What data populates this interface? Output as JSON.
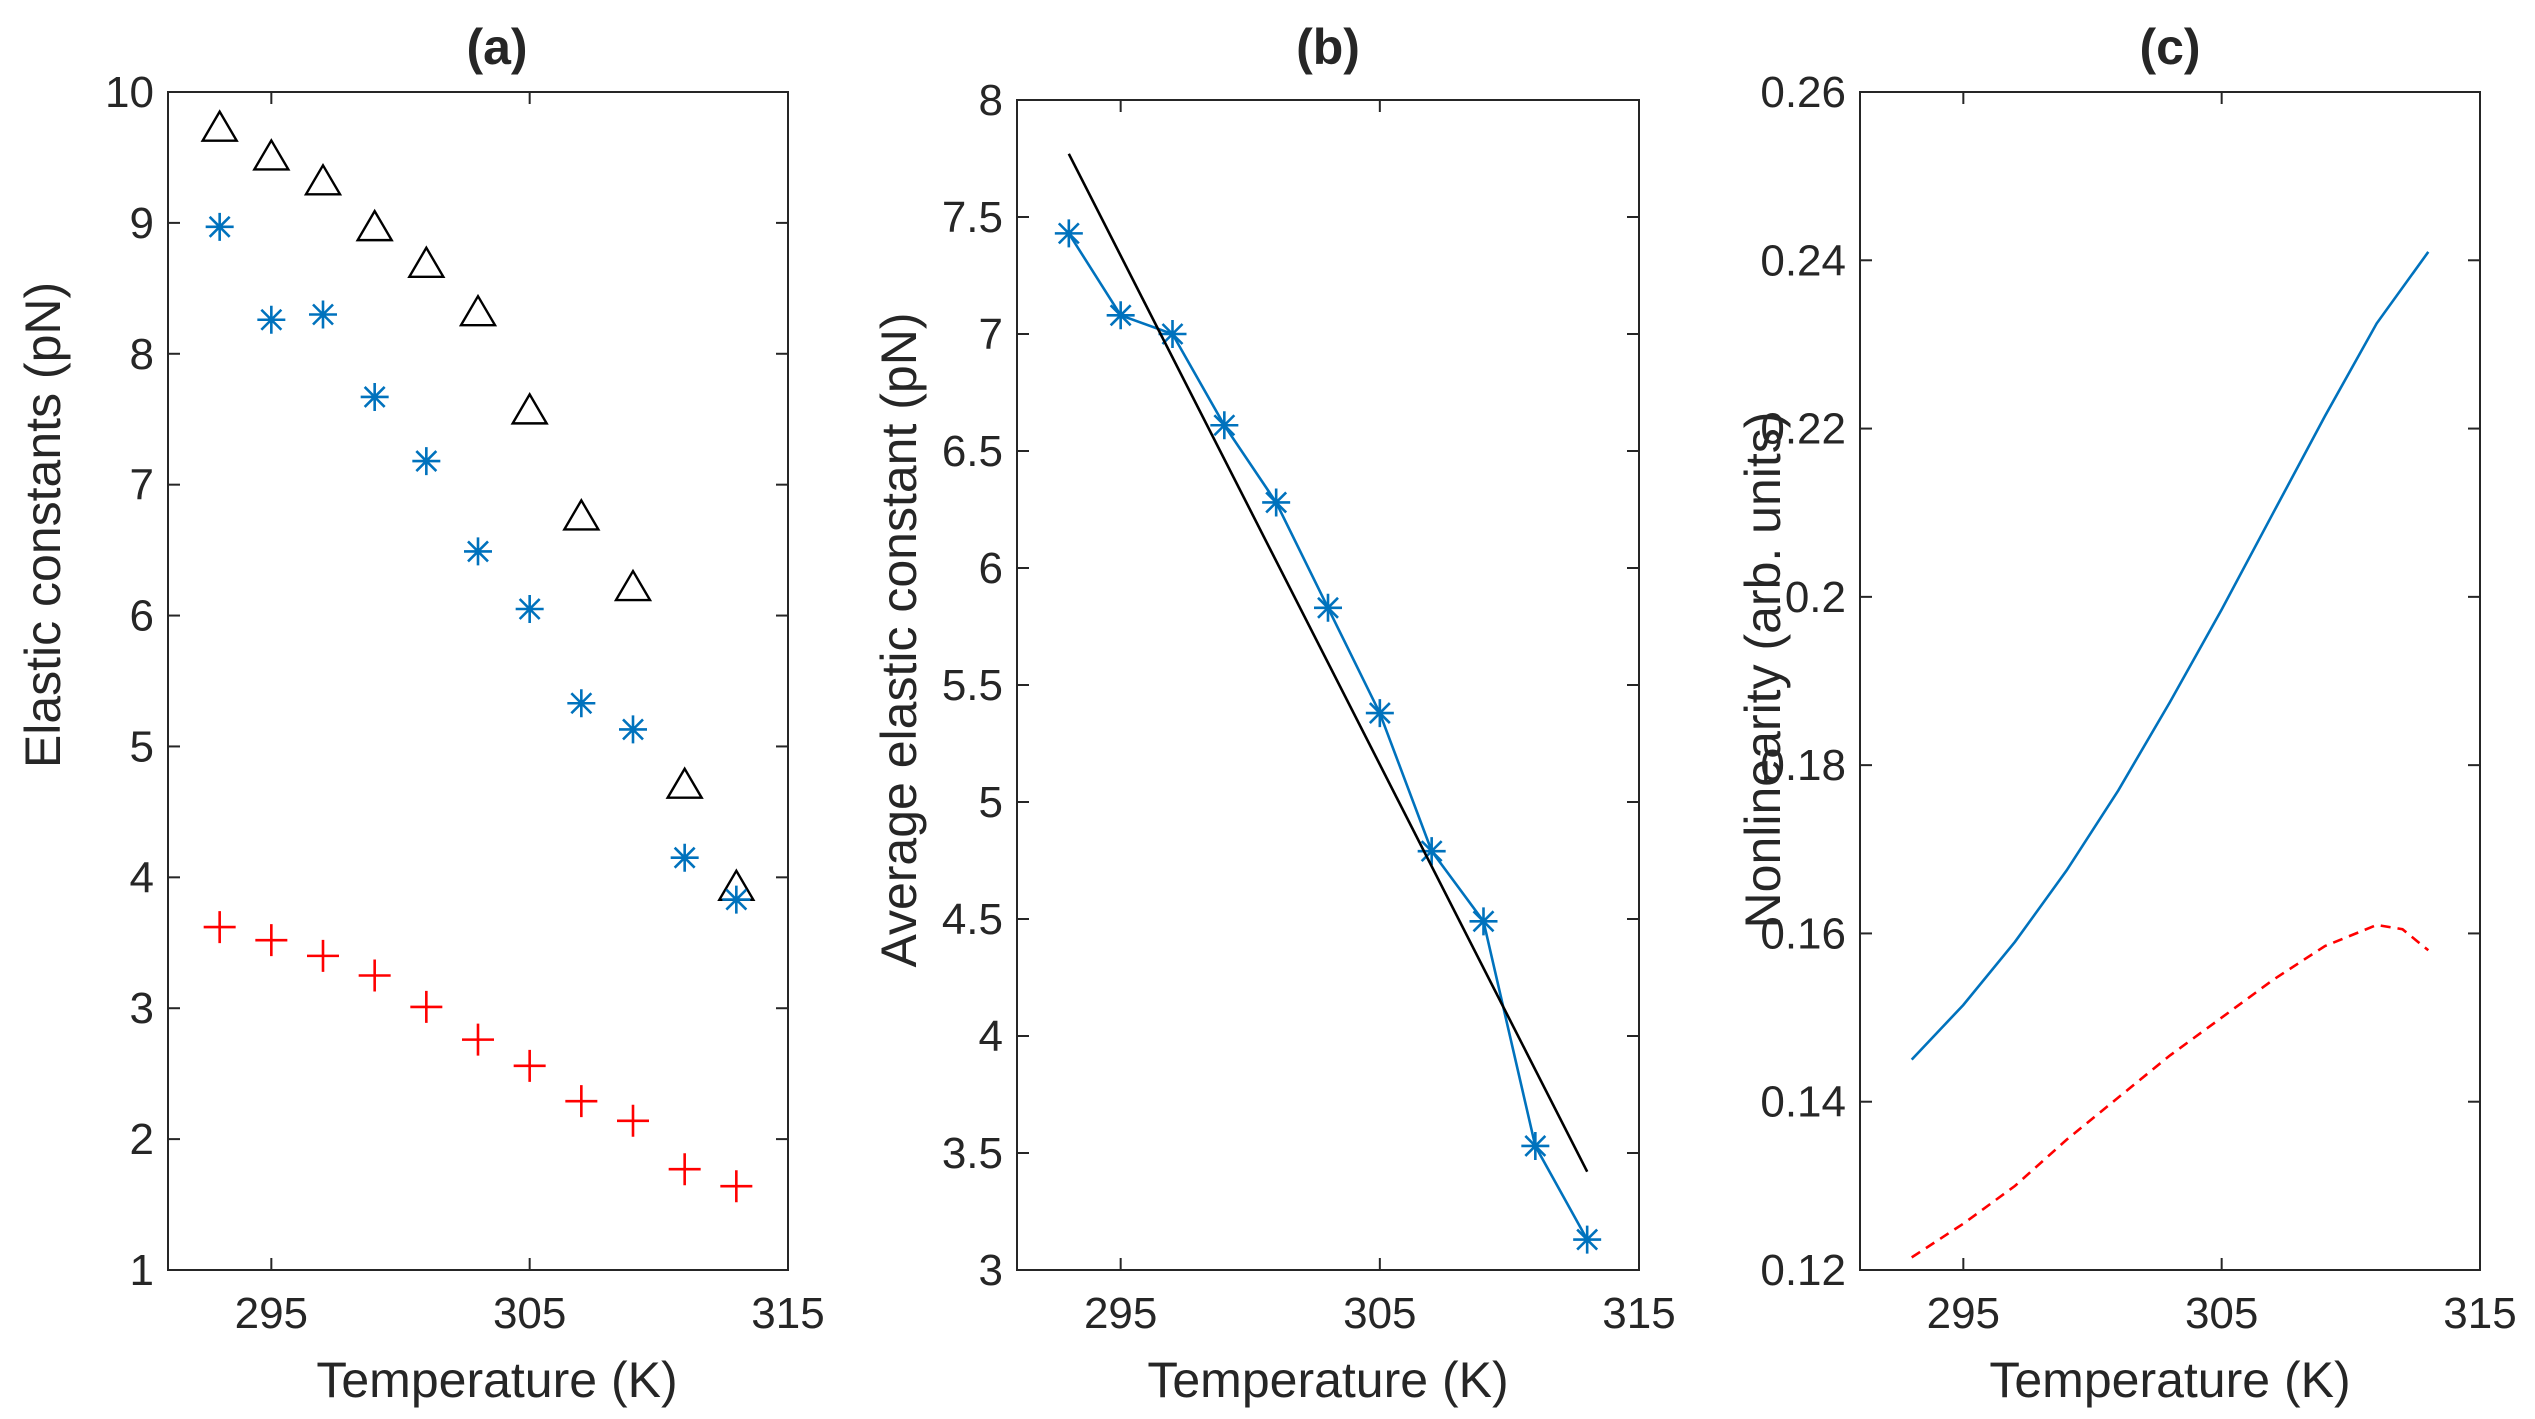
{
  "chart_data": [
    {
      "type": "scatter",
      "title": "(a)",
      "xlabel": "Temperature (K)",
      "ylabel": "Elastic constants (pN)",
      "xlim": [
        291,
        315
      ],
      "ylim": [
        1,
        10
      ],
      "xticks": [
        295,
        305,
        315
      ],
      "xtick_labels": [
        "295",
        "305",
        "315"
      ],
      "yticks": [
        1,
        2,
        3,
        4,
        5,
        6,
        7,
        8,
        9,
        10
      ],
      "ytick_labels": [
        "1",
        "2",
        "3",
        "4",
        "5",
        "6",
        "7",
        "8",
        "9",
        "10"
      ],
      "x": [
        293,
        295,
        297,
        299,
        301,
        303,
        305,
        307,
        309,
        311,
        313
      ],
      "series": [
        {
          "name": "triangles",
          "marker": "triangle",
          "line": "none",
          "color": "#000000",
          "values": [
            9.72,
            9.5,
            9.31,
            8.96,
            8.68,
            8.31,
            7.56,
            6.75,
            6.21,
            4.7,
            3.92
          ]
        },
        {
          "name": "stars",
          "marker": "star",
          "line": "none",
          "color": "#0072BD",
          "values": [
            8.97,
            8.26,
            8.3,
            7.67,
            7.18,
            6.49,
            6.05,
            5.33,
            5.13,
            4.15,
            3.83
          ]
        },
        {
          "name": "plus",
          "marker": "plus",
          "line": "none",
          "color": "#FF0000",
          "values": [
            3.62,
            3.52,
            3.4,
            3.25,
            3.01,
            2.76,
            2.56,
            2.29,
            2.14,
            1.77,
            1.64
          ]
        }
      ]
    },
    {
      "type": "line",
      "title": "(b)",
      "xlabel": "Temperature (K)",
      "ylabel": "Average elastic constant (pN)",
      "xlim": [
        291,
        315
      ],
      "ylim": [
        3,
        8
      ],
      "xticks": [
        295,
        305,
        315
      ],
      "xtick_labels": [
        "295",
        "305",
        "315"
      ],
      "yticks": [
        3,
        3.5,
        4,
        4.5,
        5,
        5.5,
        6,
        6.5,
        7,
        7.5,
        8
      ],
      "ytick_labels": [
        "3",
        "3.5",
        "4",
        "4.5",
        "5",
        "5.5",
        "6",
        "6.5",
        "7",
        "7.5",
        "8"
      ],
      "series": [
        {
          "name": "average",
          "marker": "star",
          "line": "solid",
          "color": "#0072BD",
          "x": [
            293,
            295,
            297,
            299,
            301,
            303,
            305,
            307,
            309,
            311,
            313
          ],
          "values": [
            7.43,
            7.08,
            7.0,
            6.61,
            6.28,
            5.83,
            5.38,
            4.79,
            4.49,
            3.53,
            3.13
          ]
        },
        {
          "name": "linear fit",
          "marker": "none",
          "line": "solid",
          "color": "#000000",
          "x": [
            293,
            313
          ],
          "values": [
            7.77,
            3.42
          ]
        }
      ]
    },
    {
      "type": "line",
      "title": "(c)",
      "xlabel": "Temperature (K)",
      "ylabel": "Nonlinearity (arb. units)",
      "xlim": [
        291,
        315
      ],
      "ylim": [
        0.12,
        0.26
      ],
      "xticks": [
        295,
        305,
        315
      ],
      "xtick_labels": [
        "295",
        "305",
        "315"
      ],
      "yticks": [
        0.12,
        0.14,
        0.16,
        0.18,
        0.2,
        0.22,
        0.24,
        0.26
      ],
      "ytick_labels": [
        "0.12",
        "0.14",
        "0.16",
        "0.18",
        "0.2",
        "0.22",
        "0.24",
        "0.26"
      ],
      "series": [
        {
          "name": "solid curve",
          "line": "solid",
          "color": "#0072BD",
          "x": [
            293,
            295,
            297,
            299,
            301,
            303,
            305,
            307,
            309,
            311,
            313
          ],
          "values": [
            0.145,
            0.1515,
            0.159,
            0.1675,
            0.177,
            0.1875,
            0.1985,
            0.21,
            0.2215,
            0.2325,
            0.241
          ]
        },
        {
          "name": "dashed curve",
          "line": "dashed",
          "color": "#FF0000",
          "x": [
            293,
            295,
            297,
            299,
            301,
            303,
            305,
            307,
            309,
            311,
            312,
            313
          ],
          "values": [
            0.1215,
            0.1255,
            0.13,
            0.1355,
            0.1405,
            0.1455,
            0.15,
            0.1545,
            0.1585,
            0.161,
            0.1605,
            0.158
          ]
        }
      ]
    }
  ]
}
